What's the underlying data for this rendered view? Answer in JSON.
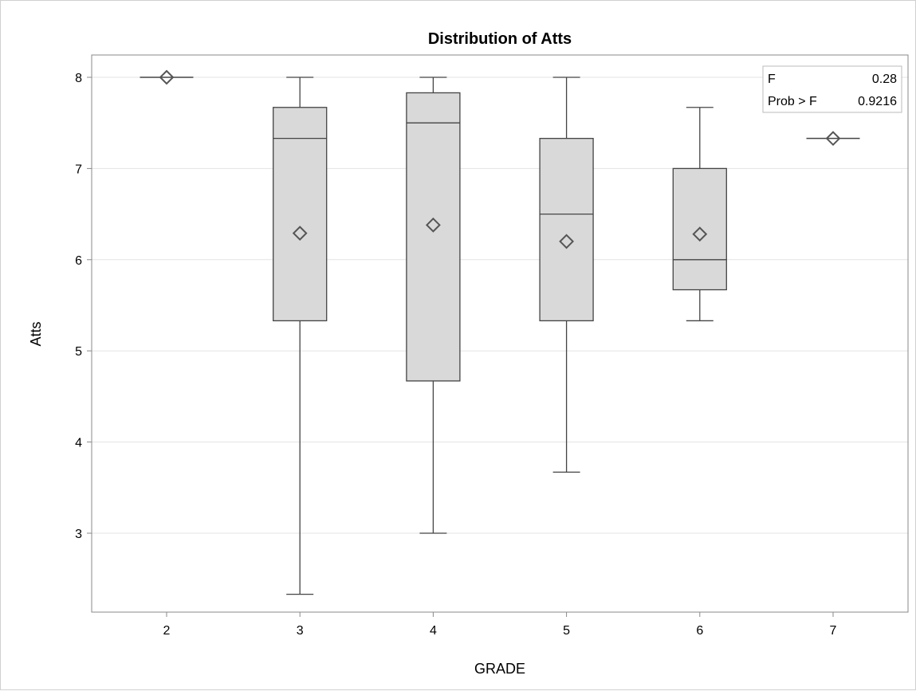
{
  "chart_data": {
    "type": "box",
    "title": "Distribution of Atts",
    "xlabel": "GRADE",
    "ylabel": "Atts",
    "ylim": [
      2.2,
      8.2
    ],
    "yticks": [
      3,
      4,
      5,
      6,
      7,
      8
    ],
    "grid": true,
    "categories": [
      "2",
      "3",
      "4",
      "5",
      "6",
      "7"
    ],
    "boxes": [
      {
        "category": "2",
        "min": 8.0,
        "q1": 8.0,
        "median": 8.0,
        "q3": 8.0,
        "max": 8.0,
        "mean": 8.0
      },
      {
        "category": "3",
        "min": 2.33,
        "q1": 5.33,
        "median": 7.33,
        "q3": 7.67,
        "max": 8.0,
        "mean": 6.29
      },
      {
        "category": "4",
        "min": 3.0,
        "q1": 4.67,
        "median": 7.5,
        "q3": 7.83,
        "max": 8.0,
        "mean": 6.38
      },
      {
        "category": "5",
        "min": 3.67,
        "q1": 5.33,
        "median": 6.5,
        "q3": 7.33,
        "max": 8.0,
        "mean": 6.2
      },
      {
        "category": "6",
        "min": 5.33,
        "q1": 5.67,
        "median": 6.0,
        "q3": 7.0,
        "max": 7.67,
        "mean": 6.28
      },
      {
        "category": "7",
        "min": 7.33,
        "q1": 7.33,
        "median": 7.33,
        "q3": 7.33,
        "max": 7.33,
        "mean": 7.33
      }
    ],
    "inset": {
      "position": "top-right",
      "rows": [
        {
          "label": "F",
          "value": "0.28"
        },
        {
          "label": "Prob > F",
          "value": "0.9216"
        }
      ]
    },
    "colors": {
      "box_fill": "#d9d9d9",
      "line": "#444444",
      "grid": "#e3e3e3",
      "mean_marker": "#555555"
    }
  }
}
